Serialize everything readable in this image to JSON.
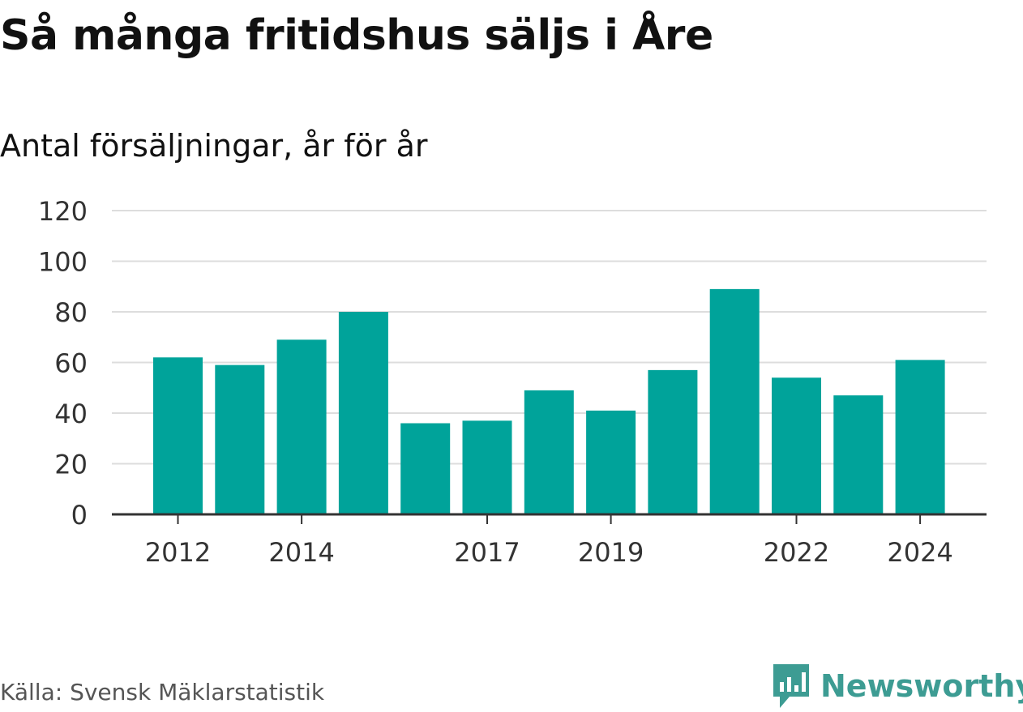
{
  "chart_data": {
    "type": "bar",
    "title": "Så många fritidshus säljs i Åre",
    "subtitle": "Antal försäljningar, år för år",
    "categories": [
      "2012",
      "2013",
      "2014",
      "2015",
      "2016",
      "2017",
      "2018",
      "2019",
      "2020",
      "2021",
      "2022",
      "2023",
      "2024"
    ],
    "values": [
      62,
      59,
      69,
      80,
      36,
      37,
      49,
      41,
      57,
      89,
      54,
      47,
      61
    ],
    "x_tick_labels": [
      "2012",
      "2014",
      "2017",
      "2019",
      "2022",
      "2024"
    ],
    "y_ticks": [
      0,
      20,
      40,
      60,
      80,
      100,
      120
    ],
    "ylim": [
      0,
      120
    ],
    "bar_color": "#00a39a",
    "grid": true
  },
  "source": "Källa: Svensk Mäklarstatistik",
  "logo": {
    "text": "Newsworthy",
    "icon": "newsworthy-logo-icon",
    "color": "#3d9c93"
  }
}
